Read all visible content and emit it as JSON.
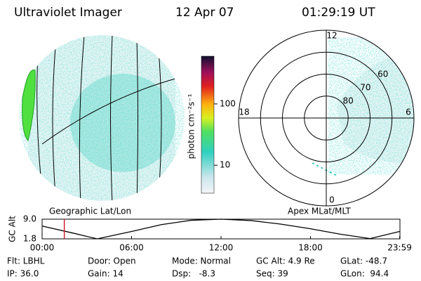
{
  "header": {
    "title": "Ultraviolet Imager",
    "date": "12 Apr 07",
    "time": "01:29:19 UT"
  },
  "geo_panel": {
    "label": "Geographic Lat/Lon"
  },
  "colorbar": {
    "label": "photon cm⁻²s⁻¹",
    "scale": "log",
    "clim": [
      3.5,
      600
    ],
    "ticks": [
      10,
      100
    ]
  },
  "polar_panel": {
    "label": "Apex MLat/MLT",
    "rlim": [
      90,
      50
    ],
    "rings": [
      80,
      70,
      60
    ],
    "mlt_labels": [
      12,
      18,
      6,
      0
    ]
  },
  "chart_data": {
    "type": "line",
    "ylabel": "GC Alt",
    "color": "#000000",
    "x": [
      0,
      2,
      3.7,
      6,
      8,
      10,
      12,
      14,
      16,
      18,
      20,
      22,
      23.98
    ],
    "values": [
      6.5,
      4,
      1.8,
      4.5,
      7,
      8.6,
      9.0,
      8.5,
      7.2,
      5.5,
      3.5,
      1.9,
      4.5
    ],
    "xlim": [
      0,
      24
    ],
    "ylim": [
      1.8,
      9.0
    ],
    "xticks": [
      {
        "value": 0,
        "label": "00:00"
      },
      {
        "value": 6,
        "label": "06:00"
      },
      {
        "value": 12,
        "label": "12:00"
      },
      {
        "value": 18,
        "label": "18:00"
      },
      {
        "value": 23.98,
        "label": "23:59"
      }
    ],
    "yticks": [
      {
        "value": 9.0,
        "label": "9.0"
      },
      {
        "value": 1.8,
        "label": "1.8"
      }
    ],
    "time_marker": 1.49,
    "marker_color": "#cc2233"
  },
  "info": [
    [
      "Flt: LBHL",
      "Door: Open",
      "Mode: Normal",
      "GC Alt: 4.9 Re",
      "GLat: -48.7"
    ],
    [
      "IP: 36.0",
      "Gain: 14",
      "Dsp:   -8.3",
      "Seq: 39",
      "GLon:  94.4"
    ]
  ]
}
